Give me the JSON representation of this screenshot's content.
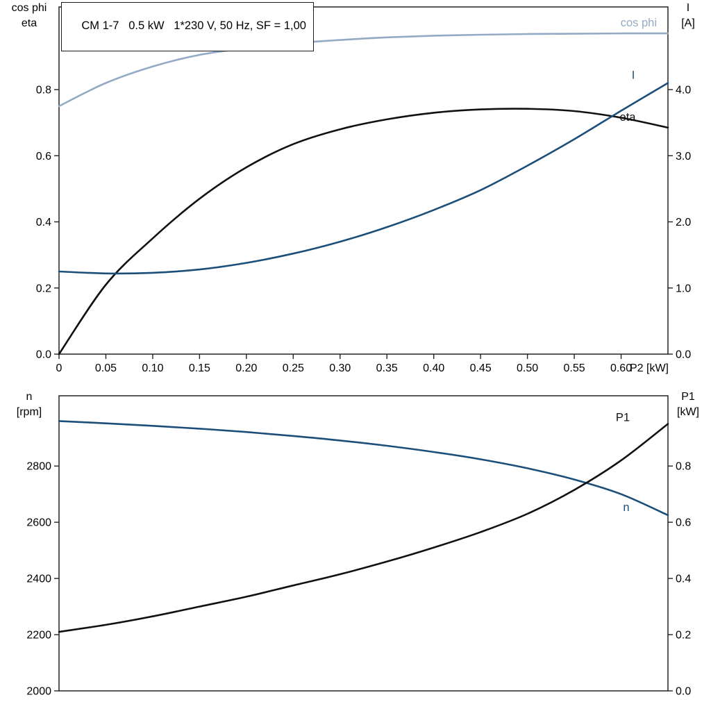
{
  "title_box": {
    "text": "CM 1-7   0.5 kW   1*230 V, 50 Hz, SF = 1,00"
  },
  "colors": {
    "black_curve": "#111111",
    "dark_blue": "#1b4e79",
    "light_blue": "#93aac6",
    "axis": "#222222",
    "text": "#000000"
  },
  "chart_data": [
    {
      "type": "line",
      "title": "CM 1-7   0.5 kW   1*230 V, 50 Hz, SF = 1,00",
      "x": [
        0,
        0.05,
        0.1,
        0.15,
        0.2,
        0.25,
        0.3,
        0.35,
        0.4,
        0.45,
        0.5,
        0.55,
        0.6,
        0.65
      ],
      "xlabel": "P2 [kW]",
      "xlim": [
        0,
        0.65
      ],
      "xticks": [
        0,
        0.05,
        0.1,
        0.15,
        0.2,
        0.25,
        0.3,
        0.35,
        0.4,
        0.45,
        0.5,
        0.55,
        0.6
      ],
      "xtick_labels": [
        "0",
        "0.05",
        "0.10",
        "0.15",
        "0.20",
        "0.25",
        "0.30",
        "0.35",
        "0.40",
        "0.45",
        "0.50",
        "0.55",
        "0.60"
      ],
      "grid": false,
      "axes": {
        "left": {
          "title_lines": [
            "cos phi",
            "eta"
          ],
          "lim": [
            0,
            1.05
          ],
          "ticks": [
            0,
            0.2,
            0.4,
            0.6,
            0.8
          ],
          "tick_labels": [
            "0.0",
            "0.2",
            "0.4",
            "0.6",
            "0.8"
          ]
        },
        "right": {
          "title_lines": [
            "I",
            "[A]"
          ],
          "lim": [
            0,
            5.25
          ],
          "ticks": [
            0,
            1,
            2,
            3,
            4
          ],
          "tick_labels": [
            "0.0",
            "1.0",
            "2.0",
            "3.0",
            "4.0"
          ]
        }
      },
      "series": [
        {
          "name": "cos phi",
          "axis": "left",
          "color": "light_blue",
          "label": "cos phi",
          "label_offset": [
            -16,
            -10
          ],
          "label_anchor": "end",
          "values": [
            0.75,
            0.82,
            0.87,
            0.905,
            0.925,
            0.94,
            0.95,
            0.958,
            0.963,
            0.966,
            0.968,
            0.969,
            0.97,
            0.97
          ]
        },
        {
          "name": "eta",
          "axis": "left",
          "color": "black_curve",
          "label": "eta",
          "label_offset": [
            -58,
            -10
          ],
          "label_anchor": "middle",
          "values": [
            0,
            0.21,
            0.35,
            0.47,
            0.565,
            0.635,
            0.68,
            0.71,
            0.73,
            0.74,
            0.742,
            0.735,
            0.715,
            0.685
          ]
        },
        {
          "name": "I",
          "axis": "right",
          "color": "dark_blue",
          "label": "I",
          "label_offset": [
            -50,
            -6
          ],
          "label_anchor": "middle",
          "values": [
            1.25,
            1.22,
            1.23,
            1.28,
            1.38,
            1.52,
            1.7,
            1.92,
            2.18,
            2.48,
            2.85,
            3.25,
            3.68,
            4.1
          ]
        }
      ]
    },
    {
      "type": "line",
      "title": "",
      "x": [
        0,
        0.05,
        0.1,
        0.15,
        0.2,
        0.25,
        0.3,
        0.35,
        0.4,
        0.45,
        0.5,
        0.55,
        0.6,
        0.65
      ],
      "xlabel": "",
      "xlim": [
        0,
        0.65
      ],
      "xticks": [],
      "xtick_labels": [],
      "grid": false,
      "axes": {
        "left": {
          "title_lines": [
            "n",
            "[rpm]"
          ],
          "lim": [
            2000,
            3050
          ],
          "ticks": [
            2000,
            2200,
            2400,
            2600,
            2800
          ],
          "tick_labels": [
            "2000",
            "2200",
            "2400",
            "2600",
            "2800"
          ]
        },
        "right": {
          "title_lines": [
            "P1",
            "[kW]"
          ],
          "lim": [
            0,
            1.05
          ],
          "ticks": [
            0,
            0.2,
            0.4,
            0.6,
            0.8
          ],
          "tick_labels": [
            "0.0",
            "0.2",
            "0.4",
            "0.6",
            "0.8"
          ]
        }
      },
      "series": [
        {
          "name": "n",
          "axis": "left",
          "color": "dark_blue",
          "label": "n",
          "label_offset": [
            -60,
            -6
          ],
          "label_anchor": "middle",
          "values": [
            2960,
            2952,
            2943,
            2933,
            2921,
            2907,
            2891,
            2872,
            2850,
            2824,
            2792,
            2752,
            2700,
            2625
          ]
        },
        {
          "name": "P1",
          "axis": "right",
          "color": "black_curve",
          "label": "P1",
          "label_offset": [
            -65,
            -4
          ],
          "label_anchor": "middle",
          "values": [
            0.21,
            0.235,
            0.265,
            0.3,
            0.335,
            0.375,
            0.415,
            0.46,
            0.51,
            0.565,
            0.63,
            0.715,
            0.82,
            0.95
          ]
        }
      ]
    }
  ]
}
